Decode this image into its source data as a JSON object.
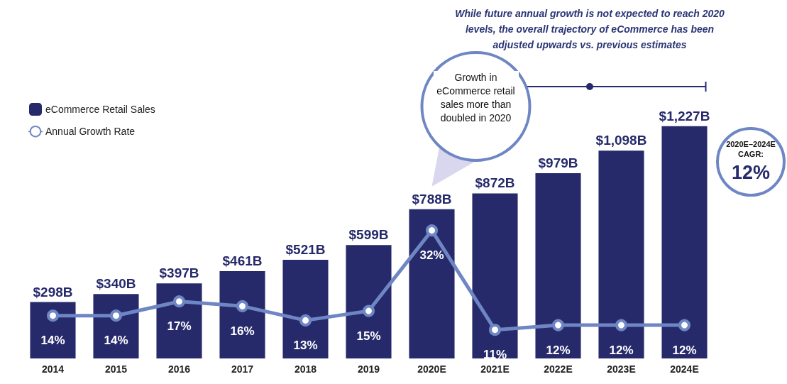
{
  "chart_data": {
    "type": "bar",
    "categories": [
      "2014",
      "2015",
      "2016",
      "2017",
      "2018",
      "2019",
      "2020E",
      "2021E",
      "2022E",
      "2023E",
      "2024E"
    ],
    "series": [
      {
        "name": "eCommerce Retail Sales",
        "color": "#262a6b",
        "values": [
          298,
          340,
          397,
          461,
          521,
          599,
          788,
          872,
          979,
          1098,
          1227
        ],
        "value_labels": [
          "$298B",
          "$340B",
          "$397B",
          "$461B",
          "$521B",
          "$599B",
          "$788B",
          "$872B",
          "$979B",
          "$1,098B",
          "$1,227B"
        ]
      },
      {
        "name": "Annual Growth Rate",
        "type": "line",
        "axis": "y2",
        "color": "#6f86c4",
        "values": [
          14,
          14,
          17,
          16,
          13,
          15,
          32,
          11,
          12,
          12,
          12
        ],
        "value_labels": [
          "14%",
          "14%",
          "17%",
          "16%",
          "13%",
          "15%",
          "32%",
          "11%",
          "12%",
          "12%",
          "12%"
        ]
      }
    ],
    "annotations": [
      "Growth in eCommerce retail sales more than doubled in 2020",
      "While future annual growth is not expected to reach 2020 levels, the overall trajectory of eCommerce has been adjusted upwards vs. previous estimates",
      "2020E–2024E CAGR:",
      "12%"
    ],
    "legend": "top left",
    "marker": "circle",
    "line_style": "solid",
    "grid": false
  }
}
